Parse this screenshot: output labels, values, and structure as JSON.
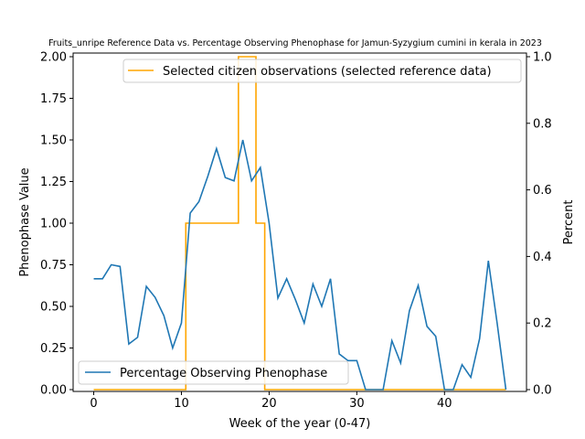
{
  "chart_data": {
    "type": "line",
    "title": "Fruits_unripe Reference Data vs. Percentage Observing Phenophase for Jamun-Syzygium cumini in kerala in 2023",
    "xlabel": "Week of the year (0-47)",
    "ylabel_left": "Phenophase Value",
    "ylabel_right": "Percent",
    "xlim": [
      -2.35,
      49.35
    ],
    "ylim_left": [
      0,
      2.0
    ],
    "ylim_right": [
      0,
      1.0
    ],
    "x_ticks": [
      0,
      10,
      20,
      30,
      40
    ],
    "x_tick_labels": [
      "0",
      "10",
      "20",
      "30",
      "40"
    ],
    "y_left_ticks": [
      0,
      0.25,
      0.5,
      0.75,
      1.0,
      1.25,
      1.5,
      1.75,
      2.0
    ],
    "y_left_tick_labels": [
      "0.00",
      "0.25",
      "0.50",
      "0.75",
      "1.00",
      "1.25",
      "1.50",
      "1.75",
      "2.00"
    ],
    "y_right_ticks": [
      0,
      0.2,
      0.4,
      0.6,
      0.8,
      1.0
    ],
    "y_right_tick_labels": [
      "0.0",
      "0.2",
      "0.4",
      "0.6",
      "0.8",
      "1.0"
    ],
    "grid": false,
    "series": [
      {
        "name": "Selected citizen observations (selected reference data)",
        "axis": "left",
        "color": "#ffa500",
        "step": "mid",
        "x": [
          0,
          1,
          2,
          3,
          4,
          5,
          6,
          7,
          8,
          9,
          10,
          11,
          12,
          13,
          14,
          15,
          16,
          17,
          18,
          19,
          20,
          21,
          22,
          23,
          24,
          25,
          26,
          27,
          28,
          29,
          30,
          31,
          32,
          33,
          34,
          35,
          36,
          37,
          38,
          39,
          40,
          41,
          42,
          43,
          44,
          45,
          46,
          47
        ],
        "values": [
          0,
          0,
          0,
          0,
          0,
          0,
          0,
          0,
          0,
          0,
          0,
          1,
          1,
          1,
          1,
          1,
          1,
          2,
          2,
          1,
          0,
          0,
          0,
          0,
          0,
          0,
          0,
          0,
          0,
          0,
          0,
          0,
          0,
          0,
          0,
          0,
          0,
          0,
          0,
          0,
          0,
          0,
          0,
          0,
          0,
          0,
          0,
          0
        ]
      },
      {
        "name": "Percentage Observing Phenophase",
        "axis": "right",
        "color": "#1f77b4",
        "x": [
          0,
          1,
          2,
          3,
          4,
          5,
          6,
          7,
          8,
          9,
          10,
          11,
          12,
          13,
          14,
          15,
          16,
          17,
          18,
          19,
          20,
          21,
          22,
          23,
          24,
          25,
          26,
          27,
          28,
          29,
          30,
          31,
          32,
          33,
          34,
          35,
          36,
          37,
          38,
          39,
          40,
          41,
          42,
          43,
          44,
          45,
          46,
          47
        ],
        "values": [
          0.333,
          0.333,
          0.375,
          0.37,
          0.137,
          0.157,
          0.31,
          0.277,
          0.222,
          0.125,
          0.2,
          0.53,
          0.565,
          0.64,
          0.724,
          0.637,
          0.627,
          0.75,
          0.627,
          0.667,
          0.5,
          0.275,
          0.333,
          0.27,
          0.2,
          0.317,
          0.25,
          0.333,
          0.107,
          0.087,
          0.087,
          0.0,
          0.0,
          0.0,
          0.147,
          0.08,
          0.237,
          0.313,
          0.19,
          0.16,
          0.0,
          0.0,
          0.075,
          0.037,
          0.153,
          0.387,
          0.2,
          0.0
        ]
      }
    ],
    "legends": [
      {
        "position": "top-right",
        "entries": [
          "Selected citizen observations (selected reference data)"
        ]
      },
      {
        "position": "bottom-left",
        "entries": [
          "Percentage Observing Phenophase"
        ]
      }
    ]
  }
}
